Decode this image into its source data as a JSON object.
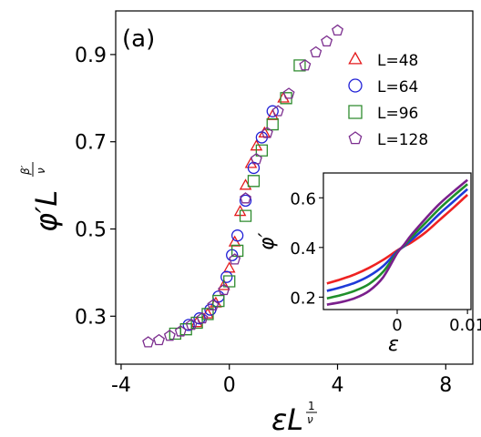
{
  "chart_data": [
    {
      "type": "scatter",
      "panel_label": "(a)",
      "xlabel": "εL^(1/ν)",
      "ylabel": "φ′L^(β′/ν)",
      "xlim": [
        -4.2,
        9.0
      ],
      "ylim": [
        0.19,
        1.0
      ],
      "x_ticks": [
        -4,
        0,
        4,
        8
      ],
      "x_tick_labels": [
        "-4",
        "0",
        "4",
        "8"
      ],
      "y_ticks": [
        0.3,
        0.5,
        0.7,
        0.9
      ],
      "y_tick_labels": [
        "0.3",
        "0.5",
        "0.7",
        "0.9"
      ],
      "grid": false,
      "legend_position": "top-right",
      "series": [
        {
          "name": "L=48",
          "marker": "triangle",
          "color": "#e41a1c",
          "x": [
            -1.2,
            -0.8,
            -0.5,
            -0.2,
            0.0,
            0.2,
            0.4,
            0.6,
            0.8,
            1.0,
            1.3,
            1.6,
            2.0
          ],
          "y": [
            0.285,
            0.305,
            0.33,
            0.37,
            0.41,
            0.47,
            0.54,
            0.6,
            0.65,
            0.69,
            0.72,
            0.76,
            0.8
          ]
        },
        {
          "name": "L=64",
          "marker": "circle",
          "color": "#1f1fd6",
          "x": [
            -1.5,
            -1.1,
            -0.7,
            -0.4,
            -0.1,
            0.1,
            0.3,
            0.6,
            0.9,
            1.2,
            1.6
          ],
          "y": [
            0.28,
            0.295,
            0.315,
            0.345,
            0.39,
            0.44,
            0.485,
            0.565,
            0.64,
            0.71,
            0.77
          ]
        },
        {
          "name": "L=96",
          "marker": "square",
          "color": "#2e8b2e",
          "x": [
            -2.0,
            -1.6,
            -1.2,
            -0.8,
            -0.4,
            0.0,
            0.3,
            0.6,
            0.9,
            1.2,
            1.6,
            2.1,
            2.6
          ],
          "y": [
            0.26,
            0.27,
            0.285,
            0.305,
            0.335,
            0.38,
            0.45,
            0.53,
            0.61,
            0.68,
            0.74,
            0.8,
            0.875
          ]
        },
        {
          "name": "L=128",
          "marker": "pentagon",
          "color": "#7b2d8e",
          "x": [
            -3.0,
            -2.6,
            -2.2,
            -1.8,
            -1.4,
            -1.0,
            -0.6,
            -0.2,
            0.2,
            0.6,
            1.0,
            1.4,
            1.8,
            2.2,
            2.8,
            3.2,
            3.6,
            4.0
          ],
          "y": [
            0.24,
            0.245,
            0.255,
            0.265,
            0.28,
            0.295,
            0.325,
            0.36,
            0.43,
            0.57,
            0.66,
            0.72,
            0.77,
            0.81,
            0.875,
            0.905,
            0.93,
            0.955
          ]
        }
      ]
    },
    {
      "type": "line",
      "role": "inset",
      "xlabel": "ε",
      "ylabel": "φ′",
      "xlim": [
        -0.0105,
        0.0105
      ],
      "ylim": [
        0.15,
        0.7
      ],
      "x_ticks": [
        0,
        0.01
      ],
      "x_tick_labels": [
        "0",
        "0.01"
      ],
      "y_ticks": [
        0.2,
        0.4,
        0.6
      ],
      "y_tick_labels": [
        "0.2",
        "0.4",
        "0.6"
      ],
      "legend_position": "none",
      "series": [
        {
          "name": "",
          "color": "#ee2222",
          "x": [
            -0.01,
            -0.008,
            -0.006,
            -0.004,
            -0.002,
            0,
            0.001,
            0.002,
            0.004,
            0.006,
            0.008,
            0.01
          ],
          "y": [
            0.255,
            0.272,
            0.292,
            0.318,
            0.35,
            0.388,
            0.405,
            0.42,
            0.46,
            0.51,
            0.56,
            0.612
          ]
        },
        {
          "name": "",
          "color": "#1e3ad8",
          "x": [
            -0.01,
            -0.008,
            -0.006,
            -0.004,
            -0.002,
            0,
            0.001,
            0.002,
            0.004,
            0.006,
            0.008,
            0.01
          ],
          "y": [
            0.225,
            0.24,
            0.258,
            0.285,
            0.325,
            0.384,
            0.405,
            0.43,
            0.48,
            0.535,
            0.585,
            0.635
          ]
        },
        {
          "name": "",
          "color": "#1f8f2a",
          "x": [
            -0.01,
            -0.008,
            -0.006,
            -0.004,
            -0.002,
            0,
            0.001,
            0.002,
            0.004,
            0.006,
            0.008,
            0.01
          ],
          "y": [
            0.195,
            0.208,
            0.226,
            0.253,
            0.302,
            0.38,
            0.408,
            0.44,
            0.498,
            0.556,
            0.607,
            0.655
          ]
        },
        {
          "name": "",
          "color": "#7a1f8c",
          "x": [
            -0.01,
            -0.008,
            -0.006,
            -0.004,
            -0.002,
            0,
            0.001,
            0.002,
            0.004,
            0.006,
            0.008,
            0.01
          ],
          "y": [
            0.17,
            0.18,
            0.196,
            0.225,
            0.28,
            0.377,
            0.412,
            0.45,
            0.515,
            0.575,
            0.625,
            0.672
          ]
        }
      ]
    }
  ]
}
